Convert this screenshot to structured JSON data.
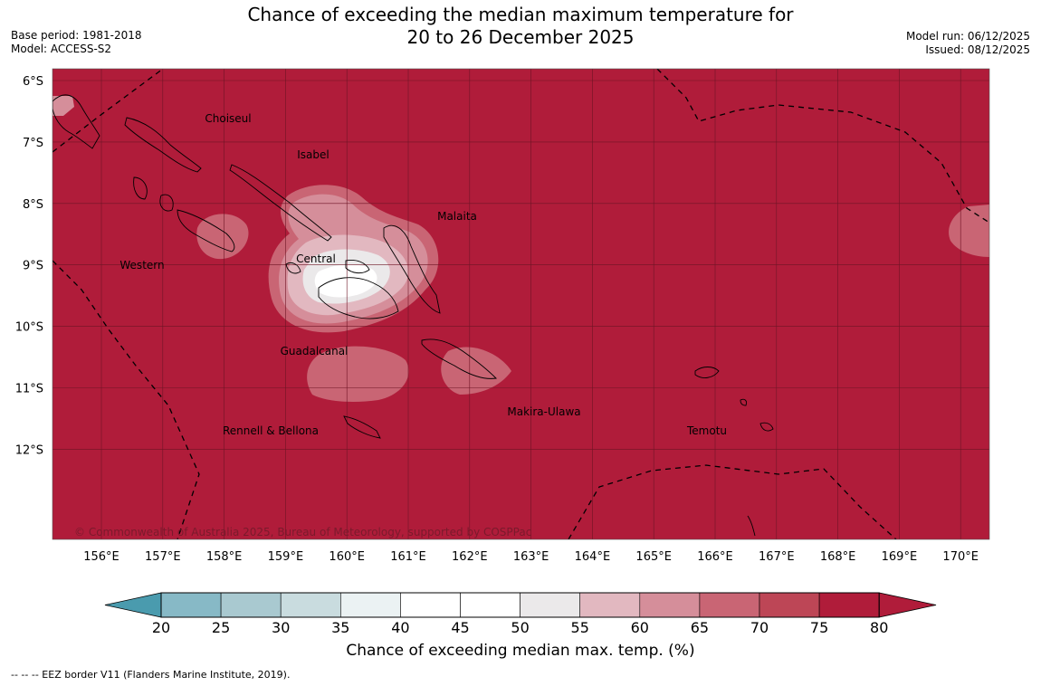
{
  "header": {
    "title_line1": "Chance of exceeding the median maximum temperature for",
    "title_line2": "20 to 26 December 2025",
    "base_period": "Base period: 1981-2018",
    "model": "Model: ACCESS-S2",
    "model_run": "Model run: 06/12/2025",
    "issued": "Issued: 08/12/2025"
  },
  "map": {
    "background_color": "#b01c3a",
    "lat_labels": [
      "6°S",
      "7°S",
      "8°S",
      "9°S",
      "10°S",
      "11°S",
      "12°S"
    ],
    "lon_labels": [
      "156°E",
      "157°E",
      "158°E",
      "159°E",
      "160°E",
      "161°E",
      "162°E",
      "163°E",
      "164°E",
      "165°E",
      "166°E",
      "167°E",
      "168°E",
      "169°E",
      "170°E"
    ],
    "provinces": [
      "Choiseul",
      "Isabel",
      "Malaita",
      "Western",
      "Central",
      "Guadalcanal",
      "Makira-Ulawa",
      "Rennell & Bellona",
      "Temotu"
    ],
    "copyright": "© Commonwealth of Australia 2025, Bureau of Meteorology, supported by COSPPac"
  },
  "legend": {
    "ticks": [
      "20",
      "25",
      "30",
      "35",
      "40",
      "45",
      "50",
      "55",
      "60",
      "65",
      "70",
      "75",
      "80"
    ],
    "colors": [
      "#68aabb",
      "#87b9c6",
      "#a9c9d0",
      "#c9dcdf",
      "#ebf2f3",
      "#ffffff",
      "#ffffff",
      "#ebe9ea",
      "#e2b8c0",
      "#d58e9a",
      "#c96574",
      "#bd4656",
      "#b01c3a"
    ],
    "under_color": "#4a9bae",
    "over_color": "#b01c3a",
    "label": "Chance of exceeding median max. temp. (%)"
  },
  "footnote": "--  --  -- EEZ border V11 (Flanders Marine Institute, 2019)."
}
